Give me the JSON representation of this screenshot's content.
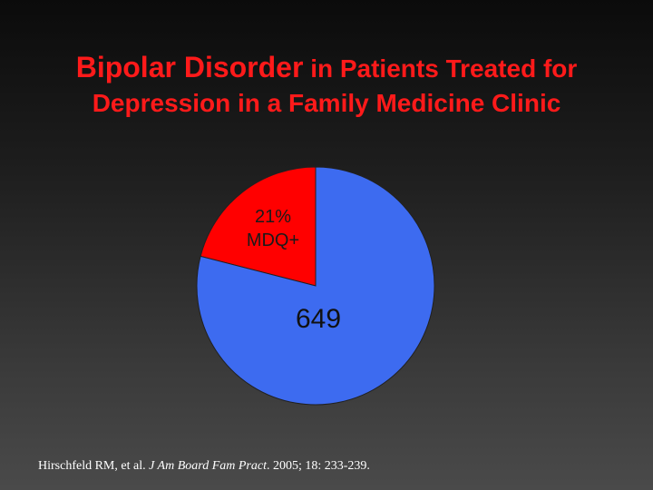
{
  "title": {
    "line1_main": "Bipolar Disorder",
    "line1_rest": " in Patients Treated for",
    "line2": "Depression in a Family Medicine Clinic"
  },
  "colors": {
    "title": "#ff1a1a",
    "positive_slice": "#ff0000",
    "negative_slice": "#3d6bf0",
    "background_top": "#0b0b0b",
    "background_bottom": "#4a4a4a"
  },
  "chart_data": {
    "type": "pie",
    "title": "",
    "labels": [
      "21%\nMDQ+",
      "649"
    ],
    "values": [
      21,
      79
    ],
    "slice_labels": {
      "positive_line1": "21%",
      "positive_line2": "MDQ+",
      "center_count": "649"
    },
    "start_angle_deg": 0,
    "legend": "none"
  },
  "citation": {
    "authors": "Hirschfeld RM, et al. ",
    "journal": "J Am Board Fam Pract",
    "details": ". 2005; 18: 233-239."
  }
}
